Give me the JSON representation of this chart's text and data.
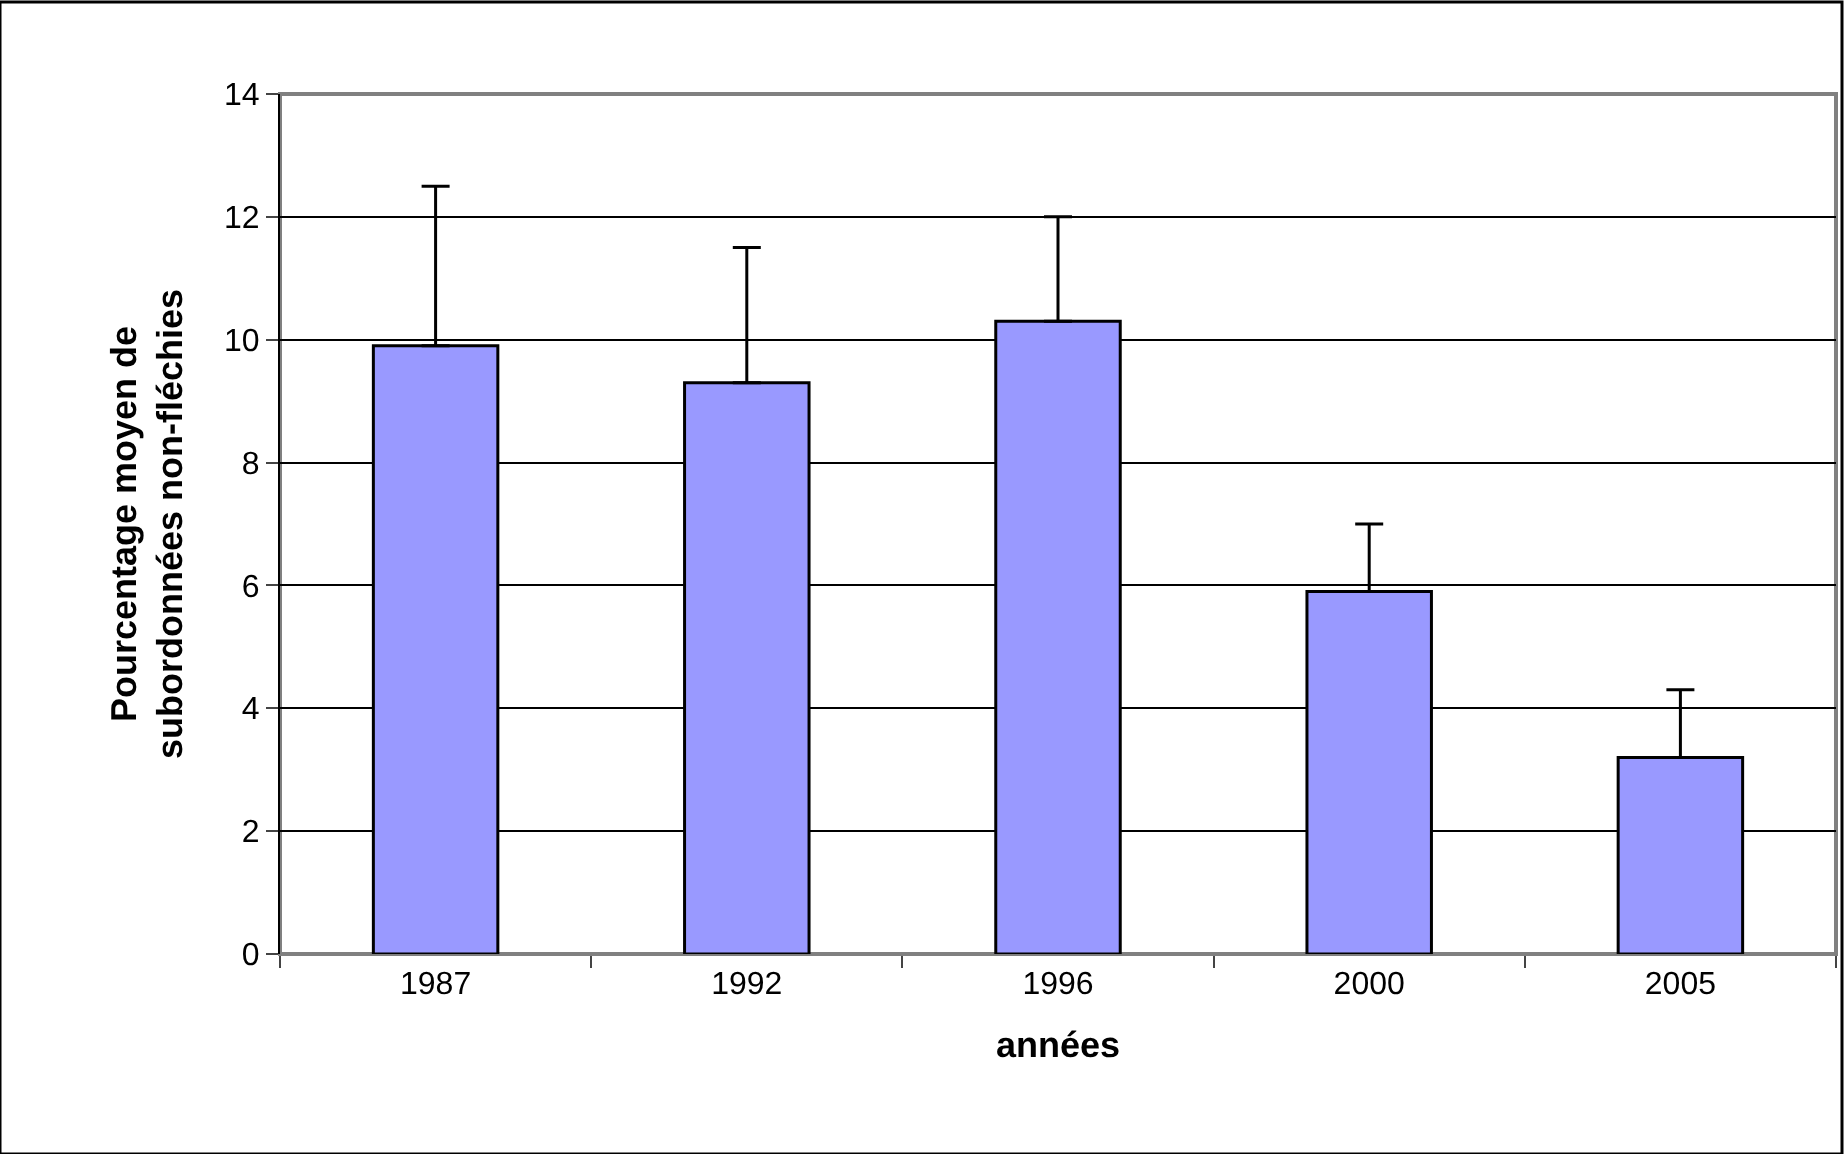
{
  "chart_data": {
    "type": "bar",
    "xlabel": "années",
    "ylabel": "Pourcentage moyen de subordonnées non-fléchies",
    "categories": [
      "1987",
      "1992",
      "1996",
      "2000",
      "2005"
    ],
    "values": [
      9.9,
      9.3,
      10.3,
      5.9,
      3.2
    ],
    "errors": [
      [
        9.9,
        12.5
      ],
      [
        9.3,
        11.5
      ],
      [
        10.3,
        12.0
      ],
      [
        5.9,
        7.0
      ],
      [
        3.2,
        4.3
      ]
    ],
    "color": "#9999ff",
    "ylim": [
      0,
      14
    ],
    "yticks": [
      0,
      2,
      4,
      6,
      8,
      10,
      12,
      14
    ],
    "grid": "y",
    "legend": false
  }
}
